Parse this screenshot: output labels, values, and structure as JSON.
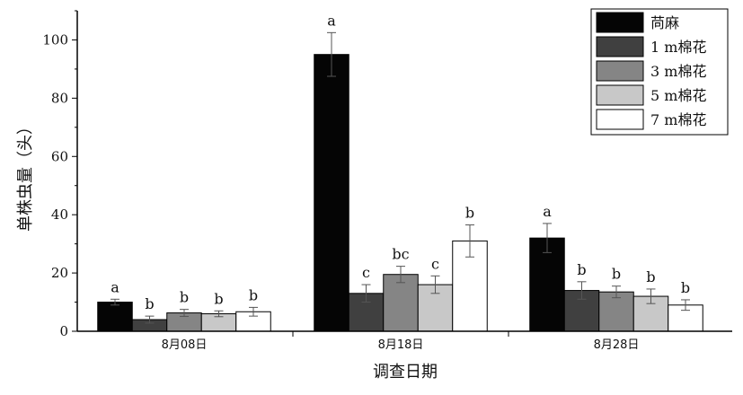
{
  "chart_data": {
    "type": "bar",
    "xlabel": "调查日期",
    "ylabel": "单株虫量（头）",
    "ylim": [
      0,
      110
    ],
    "yticks": [
      0,
      20,
      40,
      60,
      80,
      100
    ],
    "categories": [
      "8月08日",
      "8月18日",
      "8月28日"
    ],
    "legend_position": "top-right",
    "series": [
      {
        "name": "苘麻",
        "color": "#050505",
        "values": [
          10.0,
          95.0,
          32.0
        ],
        "errors": [
          1.0,
          7.5,
          5.0
        ],
        "letters": [
          "a",
          "a",
          "a"
        ]
      },
      {
        "name": "1 m棉花",
        "color": "#404040",
        "values": [
          4.0,
          13.0,
          14.0
        ],
        "errors": [
          1.2,
          3.0,
          3.0
        ],
        "letters": [
          "b",
          "c",
          "b"
        ]
      },
      {
        "name": "3 m棉花",
        "color": "#858585",
        "values": [
          6.3,
          19.5,
          13.5
        ],
        "errors": [
          1.2,
          2.8,
          2.0
        ],
        "letters": [
          "b",
          "bc",
          "b"
        ]
      },
      {
        "name": "5 m棉花",
        "color": "#c8c8c8",
        "values": [
          6.0,
          16.0,
          12.0
        ],
        "errors": [
          1.0,
          3.0,
          2.5
        ],
        "letters": [
          "b",
          "c",
          "b"
        ]
      },
      {
        "name": "7 m棉花",
        "color": "#ffffff",
        "values": [
          6.7,
          31.0,
          9.0
        ],
        "errors": [
          1.5,
          5.5,
          1.8
        ],
        "letters": [
          "b",
          "b",
          "b"
        ]
      }
    ]
  }
}
